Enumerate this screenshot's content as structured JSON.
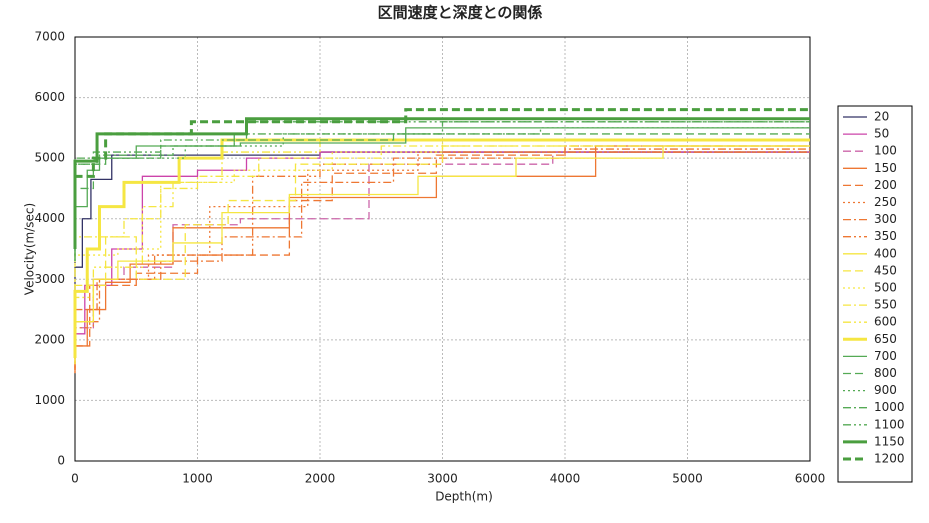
{
  "chart_data": {
    "type": "line",
    "step": true,
    "title": "区間速度と深度との関係",
    "x_label": "Depth(m)",
    "y_label": "Velocity(m/sec)",
    "xlim": [
      0,
      6000
    ],
    "xticks": [
      0,
      1000,
      2000,
      3000,
      4000,
      5000,
      6000
    ],
    "ylim": [
      0,
      7000
    ],
    "yticks": [
      0,
      1000,
      2000,
      3000,
      4000,
      5000,
      6000,
      7000
    ],
    "grid": true,
    "legend": "right",
    "series": [
      {
        "name": "20",
        "color": "#333366",
        "dash": "solid",
        "x": [
          0,
          60,
          130,
          300,
          2000,
          4000,
          6000
        ],
        "values": [
          1800,
          3200,
          4000,
          4650,
          5050,
          5100,
          5100
        ]
      },
      {
        "name": "50",
        "color": "#cc44aa",
        "dash": "solid",
        "x": [
          0,
          80,
          300,
          550,
          1000,
          1400,
          2000,
          6000
        ],
        "values": [
          1700,
          2100,
          2900,
          3500,
          4700,
          4800,
          5000,
          5100
        ]
      },
      {
        "name": "100",
        "color": "#cc66aa",
        "dash": "dashed",
        "x": [
          0,
          150,
          400,
          800,
          1350,
          2400,
          3900,
          6000
        ],
        "values": [
          1700,
          2200,
          3000,
          3200,
          3900,
          4000,
          4900,
          5100
        ]
      },
      {
        "name": "150",
        "color": "#ee7733",
        "dash": "solid",
        "x": [
          0,
          100,
          250,
          450,
          800,
          1750,
          2950,
          4250,
          6000
        ],
        "values": [
          1500,
          1900,
          2500,
          2950,
          3250,
          3850,
          4350,
          4700,
          5200
        ]
      },
      {
        "name": "200",
        "color": "#ee7733",
        "dash": "dashed",
        "x": [
          0,
          120,
          500,
          1000,
          1750,
          2100,
          2950,
          4000,
          6000
        ],
        "values": [
          1500,
          1900,
          2900,
          3100,
          3400,
          4300,
          4750,
          5050,
          5200
        ]
      },
      {
        "name": "250",
        "color": "#ee7733",
        "dash": "dotted",
        "x": [
          0,
          150,
          600,
          1100,
          1900,
          2800,
          6000
        ],
        "values": [
          1450,
          2200,
          3000,
          3400,
          4200,
          4800,
          5100
        ]
      },
      {
        "name": "300",
        "color": "#ee7733",
        "dash": "dashdot",
        "x": [
          0,
          200,
          700,
          1200,
          1850,
          2600,
          4000,
          6000
        ],
        "values": [
          1500,
          2300,
          3000,
          3300,
          3700,
          4600,
          5000,
          5150
        ]
      },
      {
        "name": "350",
        "color": "#ee7733",
        "dash": "dashdotdot",
        "x": [
          0,
          180,
          650,
          1450,
          2000,
          3000,
          6000
        ],
        "values": [
          1450,
          2500,
          3000,
          3400,
          4700,
          4900,
          5100
        ]
      },
      {
        "name": "400",
        "color": "#f5e642",
        "dash": "solid",
        "x": [
          0,
          150,
          350,
          800,
          1200,
          1750,
          2800,
          3600,
          4800,
          6000
        ],
        "values": [
          1600,
          2300,
          3000,
          3300,
          3600,
          4100,
          4400,
          4700,
          5000,
          5200
        ]
      },
      {
        "name": "450",
        "color": "#f5e642",
        "dash": "dashed",
        "x": [
          0,
          250,
          500,
          900,
          1250,
          1800,
          3000,
          6000
        ],
        "values": [
          1700,
          2900,
          3700,
          3000,
          3900,
          4300,
          4900,
          5200
        ]
      },
      {
        "name": "500",
        "color": "#f5e642",
        "dash": "dotted",
        "x": [
          0,
          350,
          700,
          1300,
          2100,
          3000,
          6000
        ],
        "values": [
          1800,
          3400,
          3500,
          4600,
          4800,
          5100,
          5300
        ]
      },
      {
        "name": "550",
        "color": "#f5e642",
        "dash": "dashdot",
        "x": [
          0,
          400,
          700,
          1000,
          1500,
          2500,
          6000
        ],
        "values": [
          2000,
          3700,
          4000,
          4500,
          4700,
          5000,
          5200
        ]
      },
      {
        "name": "600",
        "color": "#f5e642",
        "dash": "dashdotdot",
        "x": [
          0,
          150,
          550,
          800,
          1200,
          2000,
          6000
        ],
        "values": [
          1600,
          2700,
          3200,
          4200,
          4600,
          5100,
          5300
        ]
      },
      {
        "name": "650",
        "color": "#f5e642",
        "dash": "solid",
        "thick": true,
        "x": [
          0,
          100,
          200,
          400,
          850,
          1200,
          5400,
          6000
        ],
        "values": [
          1700,
          2800,
          3500,
          4200,
          4600,
          5000,
          5300,
          5300
        ]
      },
      {
        "name": "700",
        "color": "#55aa55",
        "dash": "solid",
        "x": [
          0,
          100,
          200,
          500,
          1000,
          1350,
          2700,
          5800,
          6000
        ],
        "values": [
          3300,
          4200,
          4800,
          5000,
          5200,
          5200,
          5250,
          5500,
          5500
        ]
      },
      {
        "name": "800",
        "color": "#55aa55",
        "dash": "dashed",
        "x": [
          0,
          150,
          250,
          700,
          1300,
          2600,
          6000
        ],
        "values": [
          3600,
          4500,
          4900,
          5000,
          5200,
          5300,
          5400
        ]
      },
      {
        "name": "900",
        "color": "#55aa55",
        "dash": "dotted",
        "x": [
          0,
          180,
          900,
          1700,
          3800,
          6000
        ],
        "values": [
          3300,
          4900,
          5000,
          5200,
          5400,
          5500
        ]
      },
      {
        "name": "1000",
        "color": "#55aa55",
        "dash": "dashdot",
        "x": [
          0,
          200,
          800,
          1300,
          3000,
          6000
        ],
        "values": [
          3400,
          4900,
          5050,
          5200,
          5400,
          5600
        ]
      },
      {
        "name": "1100",
        "color": "#55aa55",
        "dash": "dashdotdot",
        "x": [
          0,
          150,
          700,
          1400,
          2800,
          6000
        ],
        "values": [
          3300,
          5000,
          5100,
          5300,
          5600,
          5600
        ]
      },
      {
        "name": "1150",
        "color": "#4a9e3f",
        "dash": "solid",
        "thick": true,
        "x": [
          0,
          180,
          900,
          1400,
          3900,
          6000
        ],
        "values": [
          3500,
          4950,
          5400,
          5400,
          5650,
          5650
        ]
      },
      {
        "name": "1200",
        "color": "#4a9e3f",
        "dash": "dashed",
        "thick": true,
        "x": [
          0,
          150,
          250,
          950,
          2700,
          5100,
          6000
        ],
        "values": [
          3900,
          4700,
          5000,
          5400,
          5600,
          5800,
          5800
        ]
      }
    ]
  }
}
